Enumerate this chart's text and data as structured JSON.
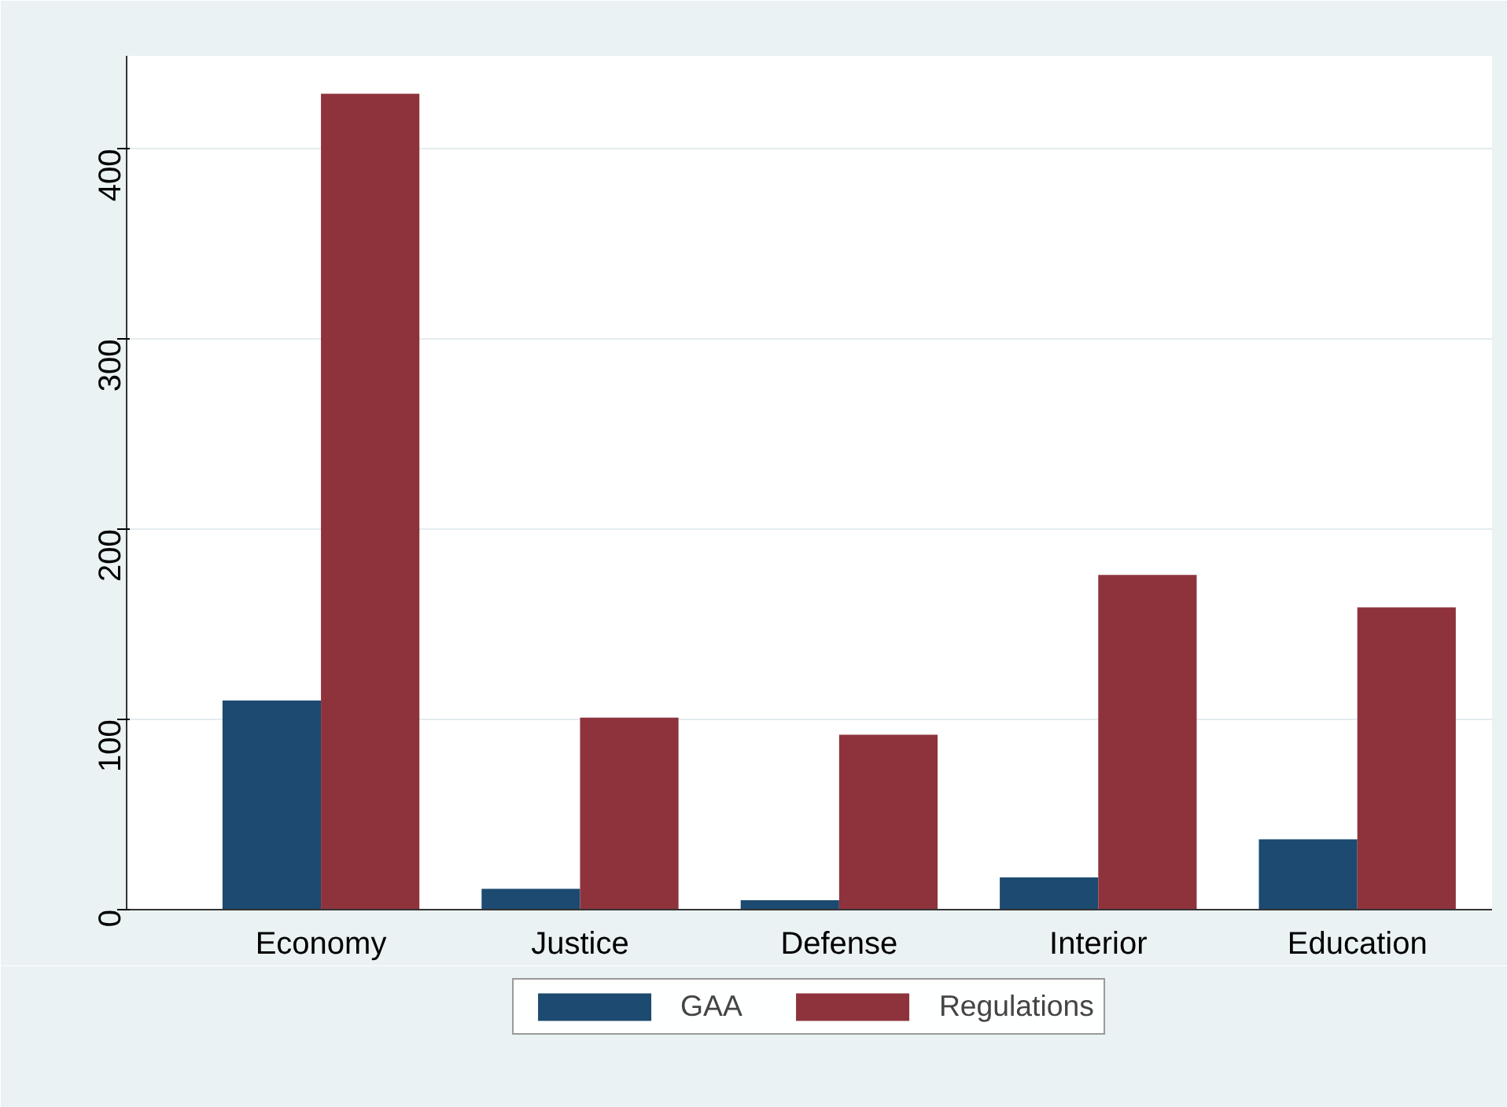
{
  "chart_data": {
    "type": "bar",
    "categories": [
      "Economy",
      "Justice",
      "Defense",
      "Interior",
      "Education"
    ],
    "series": [
      {
        "name": "GAA",
        "color": "#1c4a70",
        "values": [
          110,
          11,
          5,
          17,
          37
        ]
      },
      {
        "name": "Regulations",
        "color": "#8e333c",
        "values": [
          429,
          101,
          92,
          176,
          159
        ]
      }
    ],
    "ylim": [
      0,
      449
    ],
    "yticks": [
      0,
      100,
      200,
      300,
      400
    ],
    "grid": "y",
    "legend": "bottom"
  }
}
